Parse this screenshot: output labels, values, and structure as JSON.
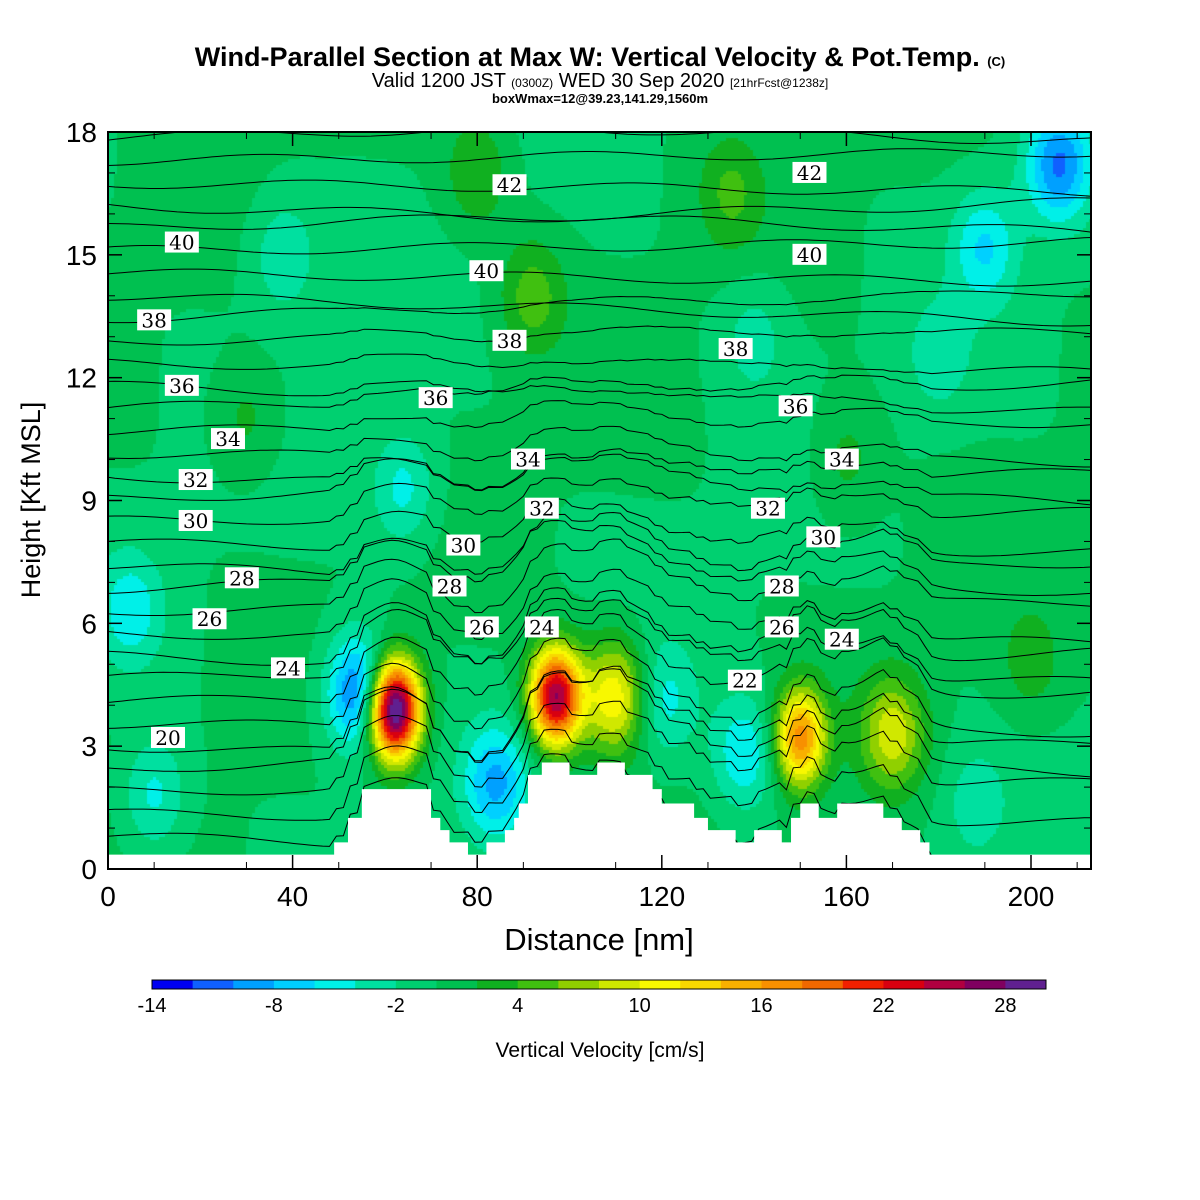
{
  "header": {
    "title": "Wind-Parallel Section at Max W: Vertical Velocity & Pot.Temp.",
    "title_mark": "(C)",
    "valid": "Valid 1200 JST",
    "valid_z": "(0300Z)",
    "valid_date": "WED 30 Sep 2020",
    "fcst": "[21hrFcst@1238z]",
    "box": "boxWmax=12@39.23,141.29,1560m"
  },
  "chart_data": {
    "type": "contour-section",
    "xlabel": "Distance [nm]",
    "ylabel": "Height [Kft MSL]",
    "xlim": [
      0,
      213
    ],
    "ylim": [
      0,
      18
    ],
    "x_ticks": [
      "0",
      "40",
      "80",
      "120",
      "160",
      "200"
    ],
    "y_ticks": [
      "0",
      "3",
      "6",
      "9",
      "12",
      "15",
      "18"
    ],
    "colorbar": {
      "label": "Vertical Velocity [cm/s]",
      "tick_labels": [
        "-14",
        "-8",
        "-2",
        "4",
        "10",
        "16",
        "22",
        "28"
      ],
      "colors": [
        "#0000f0",
        "#1060ff",
        "#00a0ff",
        "#00d0ff",
        "#00f0e8",
        "#00e0a0",
        "#00d070",
        "#00c050",
        "#10b020",
        "#40c010",
        "#90d000",
        "#d0e800",
        "#f8f800",
        "#f8d800",
        "#f8b000",
        "#f89000",
        "#f06800",
        "#f02000",
        "#d80010",
        "#b00040",
        "#800060",
        "#602090"
      ]
    },
    "terrain": [
      [
        0,
        0.35
      ],
      [
        49,
        0.35
      ],
      [
        49,
        0.65
      ],
      [
        52,
        0.65
      ],
      [
        52,
        1.25
      ],
      [
        55,
        1.25
      ],
      [
        55,
        1.95
      ],
      [
        70,
        1.95
      ],
      [
        70,
        1.25
      ],
      [
        72,
        1.25
      ],
      [
        72,
        0.95
      ],
      [
        74,
        0.95
      ],
      [
        74,
        0.65
      ],
      [
        78,
        0.65
      ],
      [
        78,
        0.35
      ],
      [
        82,
        0.35
      ],
      [
        82,
        0.65
      ],
      [
        86,
        0.65
      ],
      [
        86,
        0.95
      ],
      [
        88,
        0.95
      ],
      [
        88,
        1.25
      ],
      [
        89,
        1.25
      ],
      [
        89,
        1.6
      ],
      [
        91,
        1.6
      ],
      [
        91,
        2.3
      ],
      [
        94,
        2.3
      ],
      [
        94,
        2.6
      ],
      [
        100,
        2.6
      ],
      [
        100,
        2.3
      ],
      [
        106,
        2.3
      ],
      [
        106,
        2.6
      ],
      [
        112,
        2.6
      ],
      [
        112,
        2.3
      ],
      [
        118,
        2.3
      ],
      [
        118,
        1.95
      ],
      [
        120,
        1.95
      ],
      [
        120,
        1.6
      ],
      [
        127,
        1.6
      ],
      [
        127,
        1.25
      ],
      [
        130,
        1.25
      ],
      [
        130,
        0.95
      ],
      [
        136,
        0.95
      ],
      [
        136,
        0.65
      ],
      [
        140,
        0.65
      ],
      [
        140,
        0.95
      ],
      [
        146,
        0.95
      ],
      [
        146,
        0.65
      ],
      [
        148,
        0.65
      ],
      [
        148,
        1.25
      ],
      [
        150,
        1.25
      ],
      [
        150,
        1.6
      ],
      [
        154,
        1.6
      ],
      [
        154,
        1.25
      ],
      [
        158,
        1.25
      ],
      [
        158,
        1.6
      ],
      [
        168,
        1.6
      ],
      [
        168,
        1.25
      ],
      [
        172,
        1.25
      ],
      [
        172,
        0.95
      ],
      [
        176,
        0.95
      ],
      [
        176,
        0.65
      ],
      [
        178,
        0.65
      ],
      [
        178,
        0.35
      ],
      [
        213,
        0.35
      ]
    ],
    "w_centers": [
      {
        "x": 62,
        "y": 3.9,
        "w": 33
      },
      {
        "x": 54.5,
        "y": 4.3,
        "w": -12
      },
      {
        "x": 97,
        "y": 4.2,
        "w": 26
      },
      {
        "x": 110,
        "y": 4.2,
        "w": 12
      },
      {
        "x": 150,
        "y": 3.2,
        "w": 17
      },
      {
        "x": 170,
        "y": 3.3,
        "w": 9
      },
      {
        "x": 84,
        "y": 2.1,
        "w": -8
      },
      {
        "x": 138,
        "y": 2.8,
        "w": -6
      },
      {
        "x": 120,
        "y": 4.1,
        "w": -5
      },
      {
        "x": 5,
        "y": 6.3,
        "w": -5
      },
      {
        "x": 206,
        "y": 17.2,
        "w": -10
      },
      {
        "x": 190,
        "y": 15.2,
        "w": -6
      },
      {
        "x": 38,
        "y": 15.0,
        "w": -4
      },
      {
        "x": 64,
        "y": 9.3,
        "w": -5
      },
      {
        "x": 10,
        "y": 1.8,
        "w": -5
      },
      {
        "x": 188,
        "y": 1.6,
        "w": -3
      },
      {
        "x": 80,
        "y": 17.0,
        "w": 4
      },
      {
        "x": 92,
        "y": 14.0,
        "w": 5
      },
      {
        "x": 135,
        "y": 16.5,
        "w": 4
      },
      {
        "x": 200,
        "y": 5.0,
        "w": 3
      },
      {
        "x": 30,
        "y": 11.0,
        "w": 3
      },
      {
        "x": 160,
        "y": 10.0,
        "w": 3
      },
      {
        "x": 180,
        "y": 12.5,
        "w": -3
      },
      {
        "x": 140,
        "y": 13.0,
        "w": -3
      }
    ],
    "isentrope_labels": [
      {
        "text": "42",
        "x": 87,
        "y": 16.7
      },
      {
        "text": "42",
        "x": 152,
        "y": 17.0
      },
      {
        "text": "40",
        "x": 16,
        "y": 15.3
      },
      {
        "text": "40",
        "x": 82,
        "y": 14.6
      },
      {
        "text": "40",
        "x": 152,
        "y": 15.0
      },
      {
        "text": "38",
        "x": 10,
        "y": 13.4
      },
      {
        "text": "38",
        "x": 87,
        "y": 12.9
      },
      {
        "text": "38",
        "x": 136,
        "y": 12.7
      },
      {
        "text": "36",
        "x": 16,
        "y": 11.8
      },
      {
        "text": "36",
        "x": 71,
        "y": 11.5
      },
      {
        "text": "36",
        "x": 149,
        "y": 11.3
      },
      {
        "text": "34",
        "x": 26,
        "y": 10.5
      },
      {
        "text": "34",
        "x": 91,
        "y": 10.0
      },
      {
        "text": "34",
        "x": 159,
        "y": 10.0
      },
      {
        "text": "32",
        "x": 19,
        "y": 9.5
      },
      {
        "text": "32",
        "x": 94,
        "y": 8.8
      },
      {
        "text": "32",
        "x": 143,
        "y": 8.8
      },
      {
        "text": "30",
        "x": 19,
        "y": 8.5
      },
      {
        "text": "30",
        "x": 77,
        "y": 7.9
      },
      {
        "text": "30",
        "x": 155,
        "y": 8.1
      },
      {
        "text": "28",
        "x": 29,
        "y": 7.1
      },
      {
        "text": "28",
        "x": 74,
        "y": 6.9
      },
      {
        "text": "28",
        "x": 146,
        "y": 6.9
      },
      {
        "text": "26",
        "x": 22,
        "y": 6.1
      },
      {
        "text": "26",
        "x": 81,
        "y": 5.9
      },
      {
        "text": "26",
        "x": 146,
        "y": 5.9
      },
      {
        "text": "24",
        "x": 39,
        "y": 4.9
      },
      {
        "text": "24",
        "x": 94,
        "y": 5.9
      },
      {
        "text": "24",
        "x": 159,
        "y": 5.6
      },
      {
        "text": "22",
        "x": 138,
        "y": 4.6
      },
      {
        "text": "20",
        "x": 13,
        "y": 3.2
      }
    ]
  }
}
